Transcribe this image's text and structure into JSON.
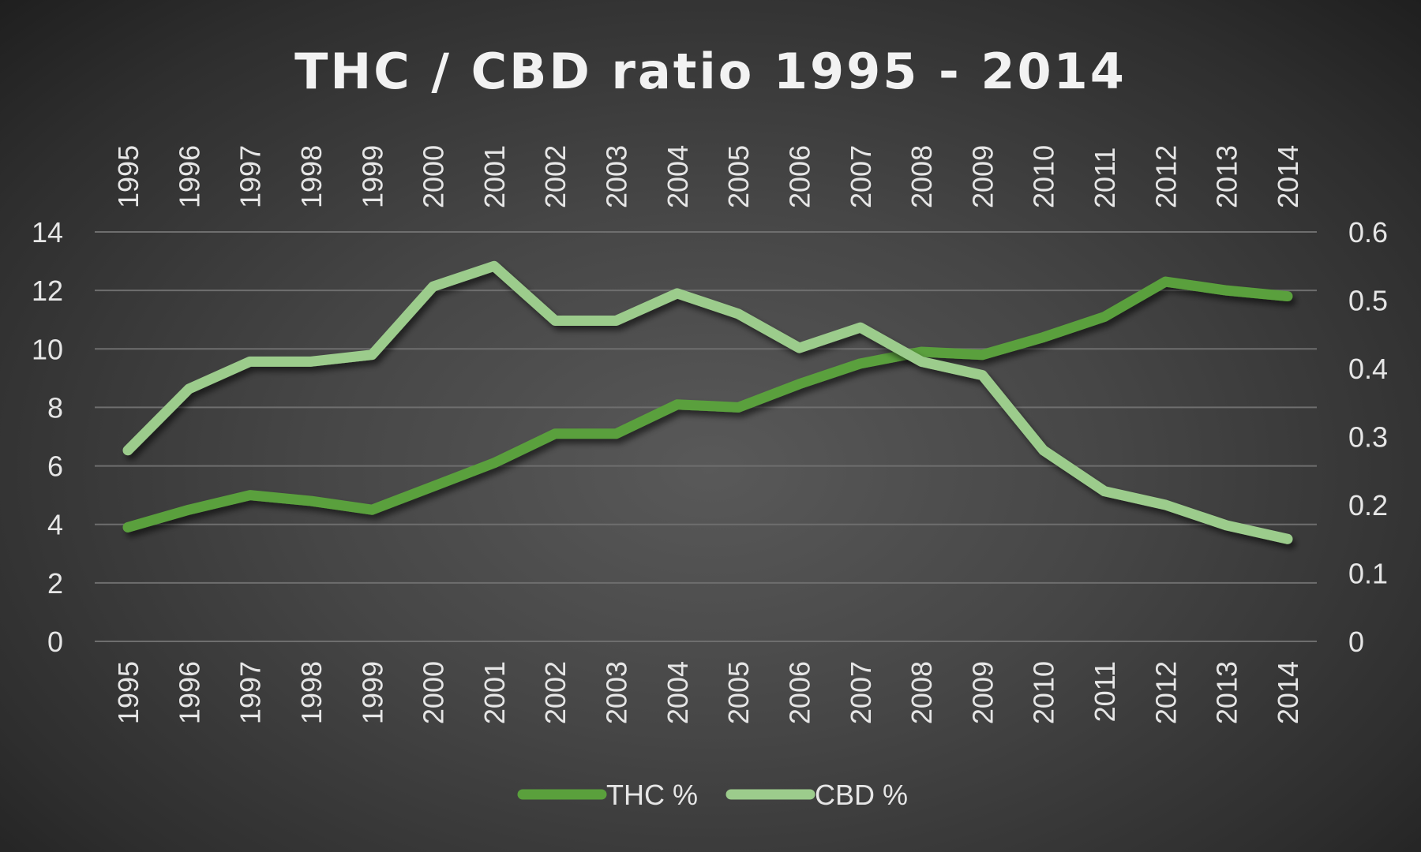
{
  "chart_data": {
    "type": "line",
    "title": "THC / CBD ratio 1995 - 2014",
    "x": [
      "1995",
      "1996",
      "1997",
      "1998",
      "1999",
      "2000",
      "2001",
      "2002",
      "2003",
      "2004",
      "2005",
      "2006",
      "2007",
      "2008",
      "2009",
      "2010",
      "2011",
      "2012",
      "2013",
      "2014"
    ],
    "series": [
      {
        "name": "THC %",
        "axis": "left",
        "color": "#5aa03c",
        "values": [
          3.9,
          4.5,
          5.0,
          4.8,
          4.5,
          5.3,
          6.1,
          7.1,
          7.1,
          8.1,
          8.0,
          8.8,
          9.5,
          9.9,
          9.8,
          10.4,
          11.1,
          12.3,
          12.0,
          11.8
        ]
      },
      {
        "name": "CBD %",
        "axis": "right",
        "color": "#9ccc8c",
        "values": [
          0.28,
          0.37,
          0.41,
          0.41,
          0.42,
          0.52,
          0.55,
          0.47,
          0.47,
          0.51,
          0.48,
          0.43,
          0.46,
          0.41,
          0.39,
          0.28,
          0.22,
          0.2,
          0.17,
          0.15
        ]
      }
    ],
    "y_left": {
      "ylim": [
        0,
        14
      ],
      "ticks": [
        "0",
        "2",
        "4",
        "6",
        "8",
        "10",
        "12",
        "14"
      ]
    },
    "y_right": {
      "ylim": [
        0,
        0.6
      ],
      "ticks": [
        "0",
        "0.1",
        "0.2",
        "0.3",
        "0.4",
        "0.5",
        "0.6"
      ]
    },
    "x_labels_top": true,
    "x_labels_bottom": true,
    "grid": true,
    "legend": "bottom"
  }
}
